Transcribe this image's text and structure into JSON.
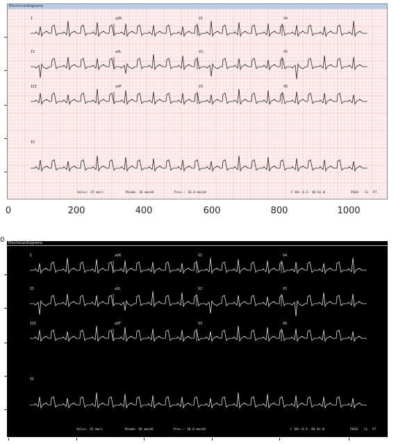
{
  "window_title": "Electrocardiograma",
  "leads": [
    [
      "I",
      "aVR",
      "V1",
      "V4"
    ],
    [
      "II",
      "aVL",
      "V2",
      "V5"
    ],
    [
      "III",
      "aVF",
      "V3",
      "V6"
    ],
    [
      "II"
    ]
  ],
  "footer": {
    "speed": "Veloc: 25 mm/s",
    "limb": "Miemb: 10 mm/mV",
    "precordial": "Prec.: 10.0 mm/mV",
    "filter": "F 60~  0.5- 40 Hz W",
    "device": "PH10",
    "cl": "CL",
    "p": "P?"
  },
  "x_axis": {
    "ticks": [
      "0",
      "200",
      "400",
      "600",
      "800",
      "1000"
    ]
  },
  "dark_axis_fragment": "0",
  "colors": {
    "paper": "#fdf0f0",
    "grid_minor": "#f4cfcf",
    "grid_major": "#e9a8a8",
    "trace_light": "#222222",
    "trace_dark": "#e6e6e6",
    "title_bar": "#b9cde6"
  }
}
